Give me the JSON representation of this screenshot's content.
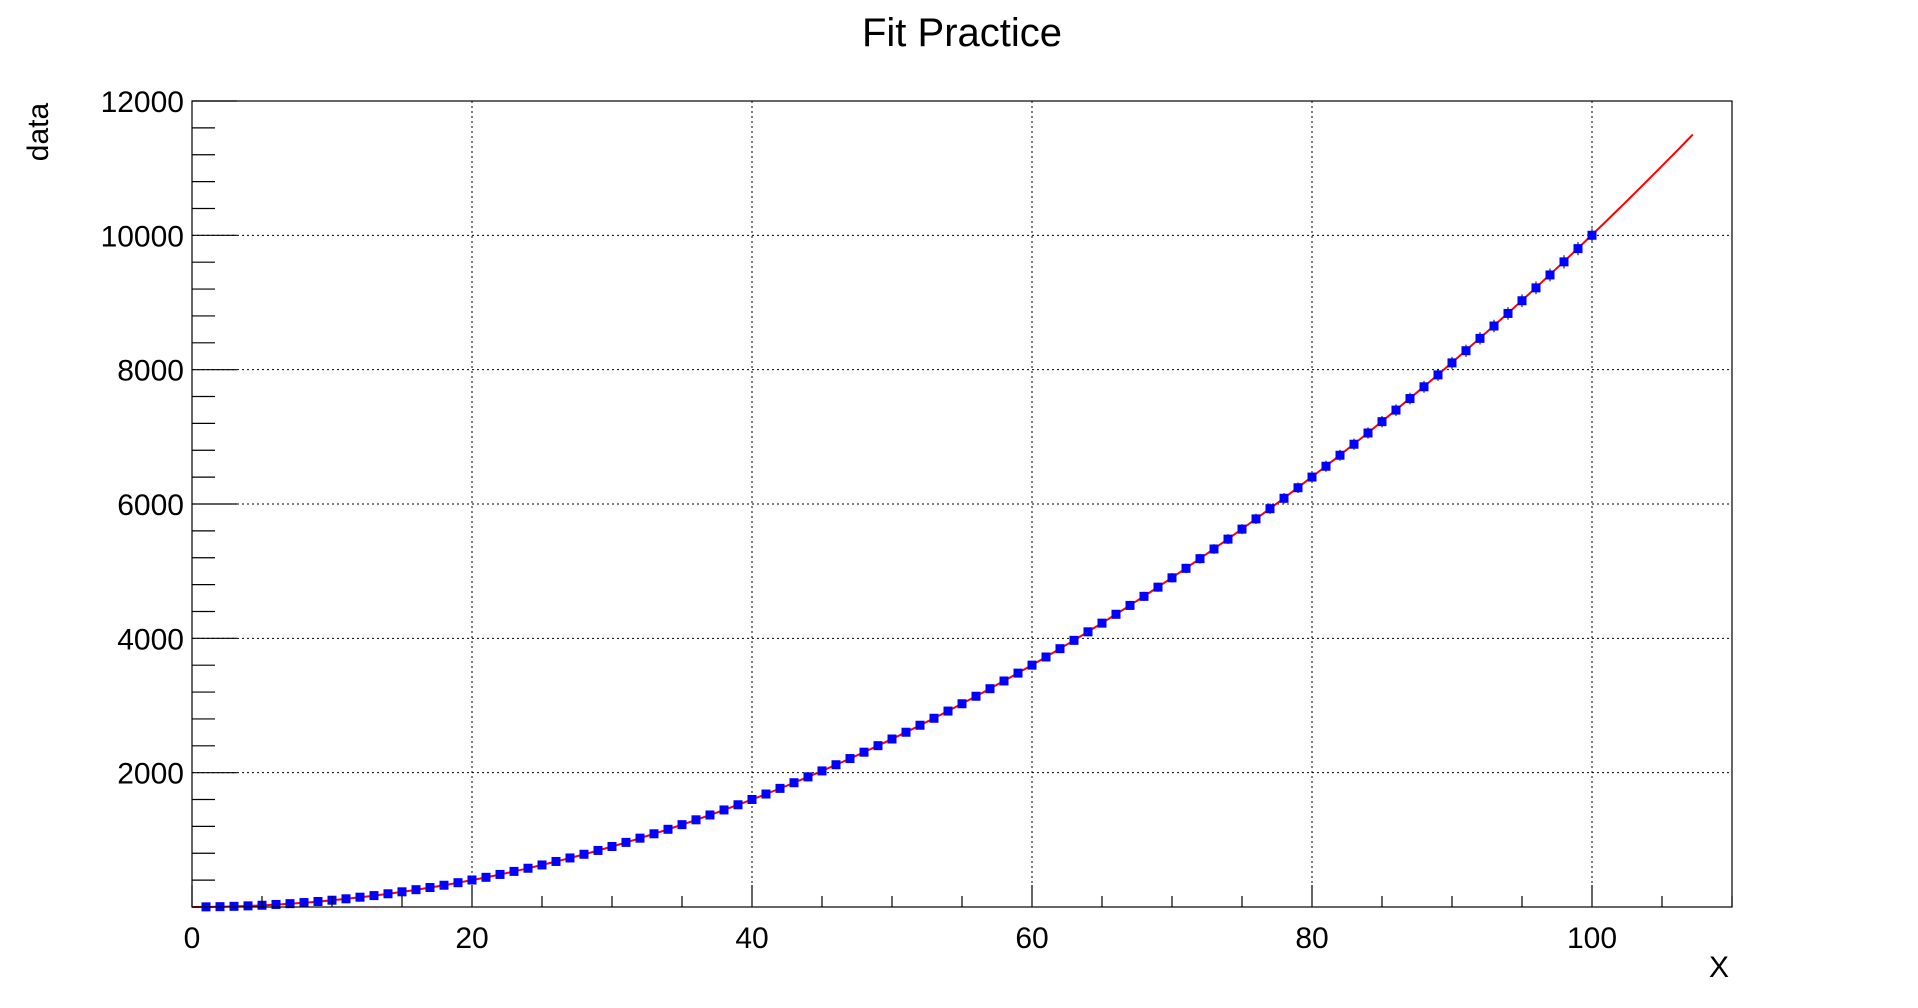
{
  "chart_data": {
    "type": "scatter",
    "title": "Fit Practice",
    "xlabel": "X",
    "ylabel": "data",
    "xlim": [
      0,
      110
    ],
    "ylim": [
      0,
      12000
    ],
    "x_ticks": [
      "0",
      "20",
      "40",
      "60",
      "80",
      "100"
    ],
    "x_tick_values": [
      0,
      20,
      40,
      60,
      80,
      100
    ],
    "y_ticks": [
      "2000",
      "4000",
      "6000",
      "8000",
      "10000",
      "12000"
    ],
    "y_tick_values": [
      2000,
      4000,
      6000,
      8000,
      10000,
      12000
    ],
    "grid": true,
    "colors": {
      "points": "#0000ff",
      "fit": "#ff0000",
      "error_bars": "#000000"
    },
    "series": [
      {
        "kind": "points",
        "x": [
          1,
          2,
          3,
          4,
          5,
          6,
          7,
          8,
          9,
          10,
          11,
          12,
          13,
          14,
          15,
          16,
          17,
          18,
          19,
          20,
          21,
          22,
          23,
          24,
          25,
          26,
          27,
          28,
          29,
          30,
          31,
          32,
          33,
          34,
          35,
          36,
          37,
          38,
          39,
          40,
          41,
          42,
          43,
          44,
          45,
          46,
          47,
          48,
          49,
          50,
          51,
          52,
          53,
          54,
          55,
          56,
          57,
          58,
          59,
          60,
          61,
          62,
          63,
          64,
          65,
          66,
          67,
          68,
          69,
          70,
          71,
          72,
          73,
          74,
          75,
          76,
          77,
          78,
          79,
          80,
          81,
          82,
          83,
          84,
          85,
          86,
          87,
          88,
          89,
          90,
          91,
          92,
          93,
          94,
          95,
          96,
          97,
          98,
          99,
          100
        ],
        "y": [
          2,
          5,
          10,
          17,
          26,
          38,
          50,
          66,
          82,
          101,
          122,
          146,
          170,
          197,
          226,
          258,
          290,
          324,
          362,
          402,
          442,
          485,
          530,
          577,
          626,
          678,
          730,
          785,
          842,
          901,
          962,
          1025,
          1090,
          1157,
          1226,
          1298,
          1370,
          1445,
          1522,
          1601,
          1682,
          1766,
          1850,
          1937,
          2026,
          2118,
          2210,
          2305,
          2402,
          2501,
          2602,
          2706,
          2810,
          2917,
          3026,
          3138,
          3250,
          3365,
          3482,
          3601,
          3722,
          3846,
          3970,
          4097,
          4226,
          4358,
          4490,
          4625,
          4762,
          4901,
          5042,
          5186,
          5330,
          5477,
          5626,
          5778,
          5930,
          6085,
          6242,
          6401,
          6562,
          6726,
          6890,
          7057,
          7226,
          7398,
          7570,
          7745,
          7922,
          8101,
          8282,
          8466,
          8650,
          8837,
          9026,
          9218,
          9410,
          9605,
          9802,
          10001
        ]
      },
      {
        "kind": "fit",
        "x": [
          0,
          107.2
        ],
        "y": [
          0,
          11500
        ]
      }
    ]
  }
}
